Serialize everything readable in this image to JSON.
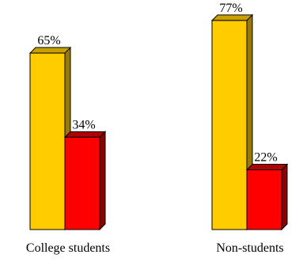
{
  "chart_data": {
    "type": "bar",
    "style": "3d",
    "title": "",
    "xlabel": "",
    "ylabel": "",
    "ylim": [
      0,
      100
    ],
    "grid": false,
    "legend": "none",
    "categories": [
      "College students",
      "Non-students"
    ],
    "series": [
      {
        "values": [
          65,
          77
        ],
        "labels": [
          "65%",
          "77%"
        ],
        "color": "#FFCC00",
        "side_color": "#9C7A00",
        "top_color": "#C9A000"
      },
      {
        "values": [
          34,
          22
        ],
        "labels": [
          "34%",
          "22%"
        ],
        "color": "#FF0000",
        "side_color": "#8B0000",
        "top_color": "#B00000"
      }
    ]
  }
}
